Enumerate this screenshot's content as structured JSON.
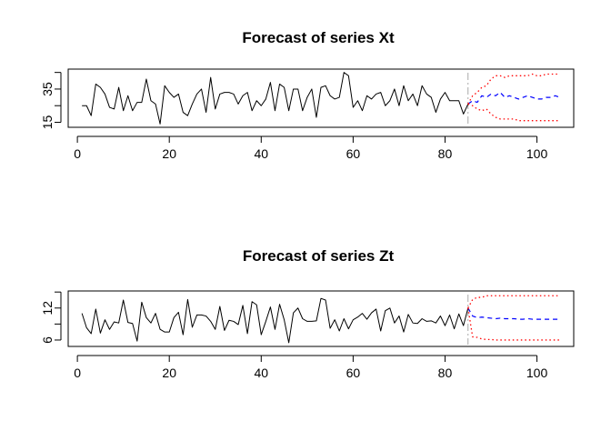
{
  "chart_data": [
    {
      "type": "line",
      "title": "Forecast of series Xt",
      "xlabel": "",
      "ylabel": "",
      "xlim": [
        -2,
        108
      ],
      "ylim": [
        12,
        47
      ],
      "x_ticks": [
        0,
        20,
        40,
        60,
        80,
        100
      ],
      "x_tick_labels": [
        "0",
        "20",
        "40",
        "60",
        "80",
        "100"
      ],
      "y_ticks": [
        15,
        25,
        35,
        45
      ],
      "y_tick_labels": [
        "15",
        "",
        "35",
        ""
      ],
      "forecast_origin": 85,
      "colors": {
        "observed": "#000000",
        "forecast": "#0000ff",
        "interval": "#ff0000",
        "origin_line": "#aaaaaa"
      },
      "series": [
        {
          "name": "observed",
          "x_start": 1,
          "values": [
            25,
            25,
            19,
            38,
            36,
            32,
            24,
            23,
            36,
            22,
            31,
            22,
            27,
            27,
            41,
            28,
            26,
            14,
            37,
            33,
            30,
            32,
            21,
            19,
            26,
            32,
            35,
            21,
            42,
            23,
            32,
            33,
            33,
            32,
            26,
            31,
            33,
            22,
            28,
            25,
            29,
            39,
            22,
            38,
            36,
            22,
            35,
            35,
            22,
            30,
            35,
            18,
            36,
            37,
            31,
            29,
            30,
            45,
            43,
            24,
            28,
            22,
            31,
            29,
            32,
            33,
            25,
            28,
            35,
            25,
            37,
            28,
            32,
            25,
            37,
            32,
            30,
            21,
            29,
            33,
            28,
            28,
            28,
            20,
            26
          ]
        },
        {
          "name": "forecast",
          "x_start": 85,
          "values": [
            26,
            28,
            27,
            31,
            30,
            32,
            31,
            33,
            30,
            31,
            30,
            29,
            30,
            31,
            30,
            29,
            29,
            30,
            30,
            31,
            30
          ]
        },
        {
          "name": "upper",
          "x_start": 85,
          "values": [
            26,
            31,
            33,
            36,
            37,
            41,
            43,
            43,
            42,
            43,
            43,
            43,
            43,
            43,
            44,
            43,
            43,
            44,
            44,
            44,
            44
          ]
        },
        {
          "name": "lower",
          "x_start": 85,
          "values": [
            26,
            25,
            23,
            22,
            23,
            20,
            18,
            17,
            17,
            17,
            17,
            16,
            16,
            16,
            16,
            16,
            16,
            16,
            16,
            16,
            16
          ]
        }
      ]
    },
    {
      "type": "line",
      "title": "Forecast of series Zt",
      "xlabel": "",
      "ylabel": "",
      "xlim": [
        -2,
        108
      ],
      "ylim": [
        4.8,
        15.2
      ],
      "x_ticks": [
        0,
        20,
        40,
        60,
        80,
        100
      ],
      "x_tick_labels": [
        "0",
        "20",
        "40",
        "60",
        "80",
        "100"
      ],
      "y_ticks": [
        6,
        9,
        12,
        15
      ],
      "y_tick_labels": [
        "6",
        "",
        "12",
        ""
      ],
      "forecast_origin": 85,
      "colors": {
        "observed": "#000000",
        "forecast": "#0000ff",
        "interval": "#ff0000",
        "origin_line": "#aaaaaa"
      },
      "series": [
        {
          "name": "observed",
          "x_start": 1,
          "values": [
            11,
            8.3,
            7.2,
            11.8,
            7.3,
            9.8,
            8,
            9.4,
            9.2,
            13.5,
            9.3,
            9.1,
            5.8,
            13.1,
            10.2,
            9.2,
            11,
            8,
            7.5,
            7.5,
            10.2,
            11.2,
            7,
            13.6,
            8.4,
            10.7,
            10.7,
            10.5,
            9.5,
            8,
            12.3,
            7.8,
            9.7,
            9.5,
            8.9,
            12.5,
            7.2,
            13.2,
            12.6,
            7,
            9.5,
            12.2,
            8,
            12.7,
            9.8,
            5.5,
            11.1,
            12,
            10,
            9.5,
            9.5,
            9.6,
            13.8,
            13.5,
            8.2,
            9.8,
            7.7,
            10,
            8.1,
            9.8,
            10.3,
            11,
            9.9,
            11.1,
            11.8,
            7.7,
            11.5,
            12,
            9.2,
            10.5,
            7.5,
            10.8,
            9.2,
            9.1,
            10,
            9.5,
            9.6,
            9.2,
            10.5,
            8.7,
            10.7,
            8.1,
            10.9,
            8.7,
            12
          ]
        },
        {
          "name": "forecast",
          "x_start": 85,
          "values": [
            12,
            10.5,
            10.2,
            10.3,
            10.2,
            10.1,
            10,
            10.1,
            10,
            10,
            10,
            9.9,
            9.9,
            10,
            9.9,
            9.9,
            9.9,
            9.9,
            9.9,
            9.9,
            9.9
          ]
        },
        {
          "name": "upper",
          "x_start": 85,
          "values": [
            12,
            13.6,
            14,
            14,
            14.3,
            14.3,
            14.3,
            14.3,
            14.3,
            14.3,
            14.3,
            14.3,
            14.3,
            14.3,
            14.3,
            14.3,
            14.3,
            14.3,
            14.3,
            14.3,
            14.3
          ]
        },
        {
          "name": "lower",
          "x_start": 85,
          "values": [
            12,
            6.6,
            6.5,
            6.2,
            6.1,
            6.1,
            6,
            6,
            6,
            6,
            6,
            6,
            6,
            6,
            6,
            6,
            6,
            6,
            6,
            6,
            6
          ]
        }
      ]
    }
  ]
}
